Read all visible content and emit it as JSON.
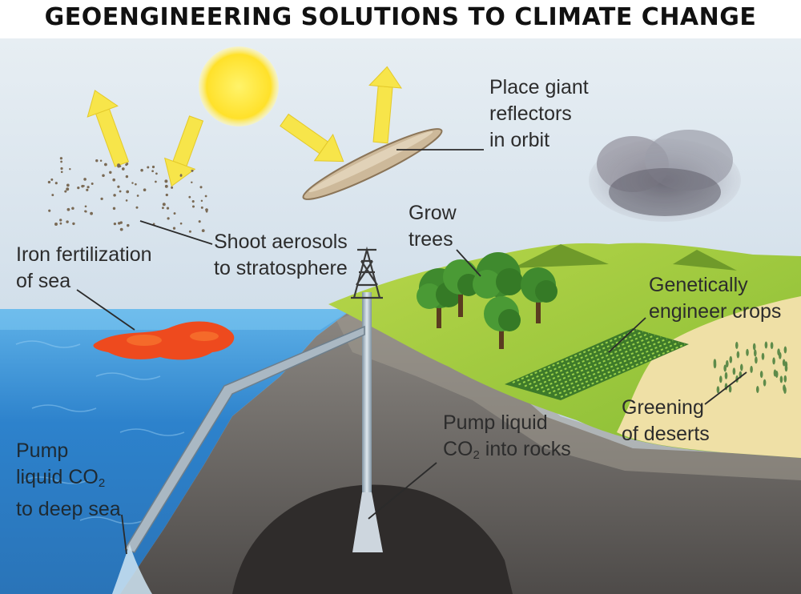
{
  "title": "GEOENGINEERING SOLUTIONS TO CLIMATE CHANGE",
  "labels": {
    "reflectors": {
      "line1": "Place giant",
      "line2": "reflectors",
      "line3": "in orbit"
    },
    "aerosols": {
      "line1": "Shoot aerosols",
      "line2": "to stratosphere"
    },
    "iron": {
      "line1": "Iron fertilization",
      "line2": "of sea"
    },
    "trees": {
      "line1": "Grow",
      "line2": "trees"
    },
    "crops": {
      "line1": "Genetically",
      "line2": "engineer crops"
    },
    "deserts": {
      "line1": "Greening",
      "line2": "of deserts"
    },
    "rocks": {
      "line1": "Pump liquid",
      "line2_pre": "CO",
      "line2_sub": "2",
      "line2_post": " into rocks"
    },
    "deep_sea": {
      "line1": "Pump",
      "line2_pre": "liquid CO",
      "line2_sub": "2",
      "line3": "to deep sea"
    }
  },
  "colors": {
    "sky_top": "#dfe8ef",
    "sky_bottom": "#b9cde2",
    "sun": "#ffe23a",
    "arrow": "#f6e44a",
    "sea": "#2f86d0",
    "grass": "#9fc83a",
    "rock": "#6d6a66",
    "iron_bloom": "#f04a1c",
    "desert": "#efe0a6"
  }
}
